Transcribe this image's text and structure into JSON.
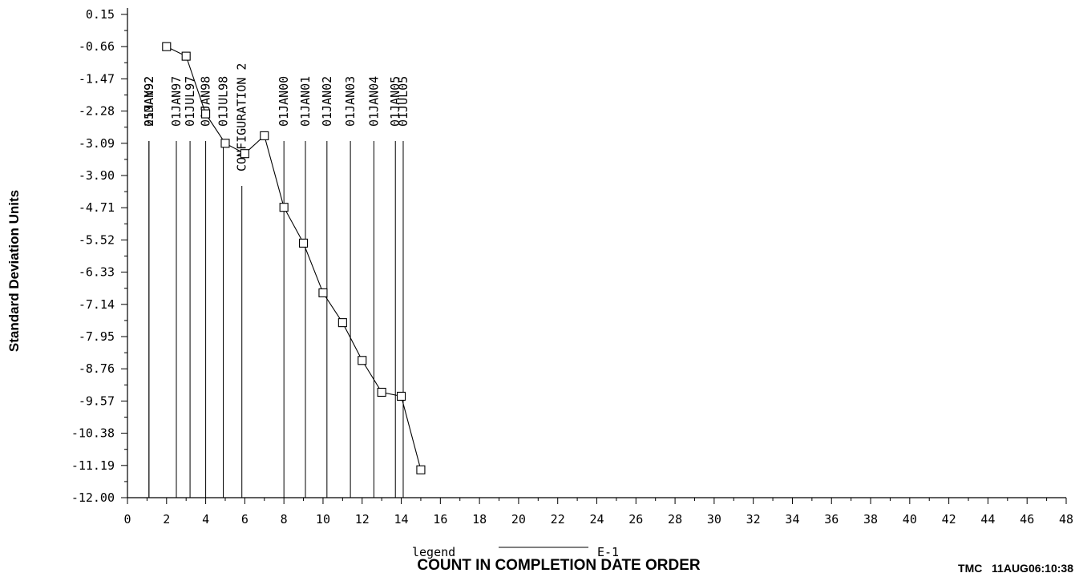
{
  "chart_data": {
    "type": "line",
    "ylabel": "Standard Deviation Units",
    "xlabel": "COUNT IN COMPLETION DATE ORDER",
    "legend_label": "legend",
    "footer": "TMC   11AUG06:10:38",
    "xlim": [
      0,
      48
    ],
    "ylim": [
      -12.0,
      0.15
    ],
    "x_ticks": [
      0,
      2,
      4,
      6,
      8,
      10,
      12,
      14,
      16,
      18,
      20,
      22,
      24,
      26,
      28,
      30,
      32,
      34,
      36,
      38,
      40,
      42,
      44,
      46,
      48
    ],
    "y_ticks": [
      "0.15",
      "-0.66",
      "-1.47",
      "-2.28",
      "-3.09",
      "-3.90",
      "-4.71",
      "-5.52",
      "-6.33",
      "-7.14",
      "-7.95",
      "-8.76",
      "-9.57",
      "-10.38",
      "-11.19",
      "-12.00"
    ],
    "series": [
      {
        "name": "E-1",
        "x": [
          2,
          3,
          4,
          5,
          6,
          7,
          8,
          9,
          10,
          11,
          12,
          13,
          14,
          15
        ],
        "y": [
          -0.66,
          -0.9,
          -2.35,
          -3.09,
          -3.35,
          -2.9,
          -4.7,
          -5.6,
          -6.85,
          -7.6,
          -8.55,
          -9.35,
          -9.45,
          -11.3
        ]
      }
    ],
    "event_lines": [
      {
        "x": 1.1,
        "label": "25MAY92"
      },
      {
        "x": 1.1,
        "label": "01JAN92"
      },
      {
        "x": 2.5,
        "label": "01JAN97"
      },
      {
        "x": 3.2,
        "label": "01JUL97"
      },
      {
        "x": 4.0,
        "label": "01JAN98"
      },
      {
        "x": 4.9,
        "label": "01JUL98"
      },
      {
        "x": 5.85,
        "label": "CONFIGURATION 2"
      },
      {
        "x": 8.0,
        "label": "01JAN00"
      },
      {
        "x": 9.1,
        "label": "01JAN01"
      },
      {
        "x": 10.2,
        "label": "01JAN02"
      },
      {
        "x": 11.4,
        "label": "01JAN03"
      },
      {
        "x": 12.6,
        "label": "01JAN04"
      },
      {
        "x": 13.7,
        "label": "01JAN05"
      },
      {
        "x": 14.1,
        "label": "01JUL05"
      }
    ]
  }
}
